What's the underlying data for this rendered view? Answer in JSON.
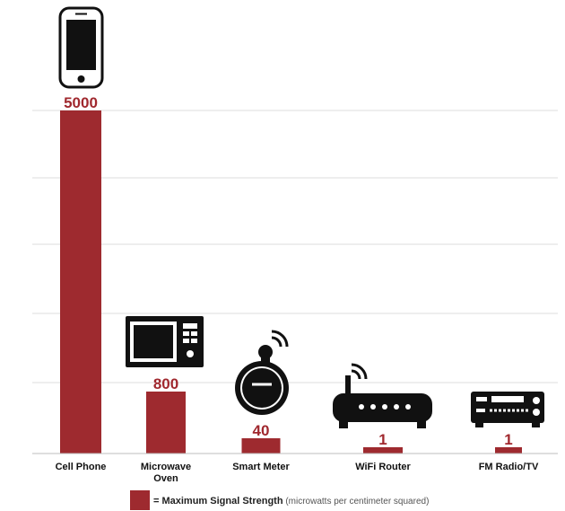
{
  "colors": {
    "bar": "#9e2a2f",
    "value_text": "#a0282e",
    "grid": "#dedede",
    "icon": "#111111"
  },
  "chart_data": {
    "type": "bar",
    "categories": [
      "Cell Phone",
      "Microwave\nOven",
      "Smart Meter",
      "WiFi Router",
      "FM Radio/TV"
    ],
    "values": [
      5000,
      800,
      40,
      1,
      1
    ],
    "data_labels": [
      "5000",
      "800",
      "40",
      "1",
      "1"
    ],
    "icons": [
      "cell-phone-icon",
      "microwave-icon",
      "smart-meter-icon",
      "wifi-router-icon",
      "radio-receiver-icon"
    ],
    "grid": true,
    "legend": {
      "position": "bottom",
      "label_bold": "= Maximum Signal Strength",
      "label_rest": " (microwatts per centimeter squared)"
    }
  }
}
